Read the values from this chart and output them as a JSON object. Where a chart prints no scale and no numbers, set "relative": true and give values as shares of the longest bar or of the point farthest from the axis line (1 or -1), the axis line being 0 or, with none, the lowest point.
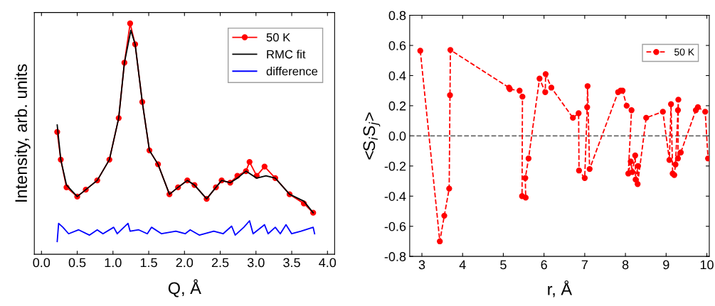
{
  "chart_data": [
    {
      "type": "line",
      "relative": true,
      "xlabel": "Q, Å",
      "ylabel": "Intensity, arb. units",
      "xlim": [
        -0.1,
        4.1
      ],
      "xticks": [
        {
          "value": 0,
          "label": "0.0"
        },
        0.5,
        {
          "value": 1,
          "label": "1.0"
        },
        1.5,
        {
          "value": 2,
          "label": "2.0"
        },
        2.5,
        {
          "value": 3,
          "label": "3.0"
        },
        3.5,
        {
          "value": 4,
          "label": "4.0"
        }
      ],
      "tick_labels": "x",
      "grid": false,
      "legend": "top right",
      "series": [
        {
          "name": "50 K",
          "color": "#ff0000",
          "marker": "circle",
          "line_style": "solid",
          "x": [
            0.22,
            0.27,
            0.35,
            0.5,
            0.62,
            0.78,
            0.95,
            1.08,
            1.16,
            1.24,
            1.31,
            1.41,
            1.51,
            1.63,
            1.79,
            1.91,
            2.04,
            2.14,
            2.31,
            2.44,
            2.52,
            2.64,
            2.74,
            2.86,
            2.91,
            3.01,
            3.12,
            3.27,
            3.47,
            3.67,
            3.8
          ],
          "values": [
            0.53,
            0.41,
            0.29,
            0.25,
            0.28,
            0.32,
            0.41,
            0.59,
            0.83,
            1.0,
            0.91,
            0.66,
            0.45,
            0.39,
            0.26,
            0.29,
            0.32,
            0.3,
            0.24,
            0.29,
            0.32,
            0.31,
            0.34,
            0.36,
            0.4,
            0.34,
            0.38,
            0.33,
            0.26,
            0.22,
            0.18
          ]
        },
        {
          "name": "RMC fit",
          "color": "#000000",
          "marker": "none",
          "line_style": "solid",
          "x": [
            0.22,
            0.27,
            0.35,
            0.5,
            0.62,
            0.78,
            0.95,
            1.08,
            1.16,
            1.25,
            1.31,
            1.41,
            1.51,
            1.63,
            1.79,
            1.91,
            2.04,
            2.14,
            2.31,
            2.44,
            2.52,
            2.64,
            2.74,
            2.86,
            3.01,
            3.14,
            3.27,
            3.47,
            3.67,
            3.8
          ],
          "values": [
            0.56,
            0.41,
            0.3,
            0.25,
            0.28,
            0.32,
            0.41,
            0.59,
            0.83,
            0.97,
            0.91,
            0.66,
            0.45,
            0.39,
            0.26,
            0.29,
            0.32,
            0.3,
            0.24,
            0.29,
            0.32,
            0.31,
            0.33,
            0.36,
            0.33,
            0.34,
            0.33,
            0.26,
            0.23,
            0.18
          ]
        },
        {
          "name": "difference",
          "color": "#0000ff",
          "marker": "none",
          "line_style": "solid",
          "x": [
            0.22,
            0.24,
            0.3,
            0.38,
            0.52,
            0.67,
            0.78,
            0.86,
            1.01,
            1.06,
            1.21,
            1.24,
            1.36,
            1.48,
            1.54,
            1.68,
            1.88,
            2.01,
            2.08,
            2.21,
            2.41,
            2.54,
            2.66,
            2.71,
            2.83,
            2.91,
            2.96,
            3.12,
            3.17,
            3.27,
            3.34,
            3.42,
            3.5,
            3.63,
            3.8,
            3.82
          ],
          "values": [
            0.055,
            0.134,
            0.117,
            0.089,
            0.106,
            0.083,
            0.106,
            0.089,
            0.117,
            0.089,
            0.134,
            0.1,
            0.106,
            0.089,
            0.117,
            0.089,
            0.1,
            0.089,
            0.106,
            0.083,
            0.1,
            0.089,
            0.122,
            0.083,
            0.117,
            0.145,
            0.089,
            0.128,
            0.089,
            0.117,
            0.089,
            0.128,
            0.089,
            0.1,
            0.117,
            0.089
          ]
        }
      ]
    },
    {
      "type": "line",
      "xlabel": "r, Å",
      "ylabel": "<S$_{i}$S$_{j}$>",
      "xlim": [
        2.7,
        10.06
      ],
      "xticks": [
        3,
        4,
        5,
        6,
        7,
        8,
        9,
        10
      ],
      "ylim": [
        -0.8,
        0.8
      ],
      "yticks": [
        {
          "value": -0.8,
          "label": "-0.8"
        },
        {
          "value": -0.6,
          "label": "-0.6"
        },
        {
          "value": -0.4,
          "label": "-0.4"
        },
        {
          "value": -0.2,
          "label": "-0.2"
        },
        {
          "value": 0,
          "label": "0.0"
        },
        0.2,
        0.4,
        0.6,
        0.8
      ],
      "grid": false,
      "legend": "top right",
      "marker": "circle",
      "line_style": "dashed",
      "ref_lines": [
        {
          "axis": "y",
          "value": 0,
          "color": "#666666",
          "line_style": "dashed"
        }
      ],
      "series": [
        {
          "name": "50 K",
          "color": "#ff0000",
          "x": [
            2.96,
            3.44,
            3.55,
            3.67,
            3.69,
            3.7,
            5.14,
            5.16,
            5.4,
            5.47,
            5.46,
            5.55,
            5.54,
            5.62,
            5.89,
            6.03,
            6.04,
            6.18,
            6.71,
            6.85,
            6.86,
            7.0,
            7.06,
            7.07,
            7.12,
            7.82,
            7.88,
            7.93,
            8.03,
            8.15,
            8.07,
            8.13,
            8.17,
            8.24,
            8.25,
            8.31,
            8.3,
            8.51,
            8.92,
            9.08,
            9.12,
            9.16,
            9.2,
            9.23,
            9.29,
            9.3,
            9.29,
            9.36,
            9.73,
            9.78,
            9.96,
            10.03
          ],
          "values": [
            0.565,
            -0.7,
            -0.53,
            -0.35,
            0.27,
            0.57,
            0.32,
            0.31,
            0.3,
            0.26,
            -0.4,
            -0.41,
            -0.28,
            -0.15,
            0.38,
            0.29,
            0.41,
            0.32,
            0.12,
            0.15,
            -0.23,
            -0.28,
            0.19,
            0.33,
            -0.22,
            0.29,
            0.3,
            0.3,
            0.2,
            0.17,
            -0.25,
            -0.17,
            -0.24,
            -0.13,
            -0.29,
            -0.2,
            -0.32,
            0.12,
            0.16,
            -0.16,
            0.21,
            -0.25,
            -0.26,
            -0.19,
            0.17,
            0.24,
            -0.15,
            -0.11,
            0.17,
            0.19,
            0.16,
            -0.15
          ]
        }
      ]
    }
  ]
}
